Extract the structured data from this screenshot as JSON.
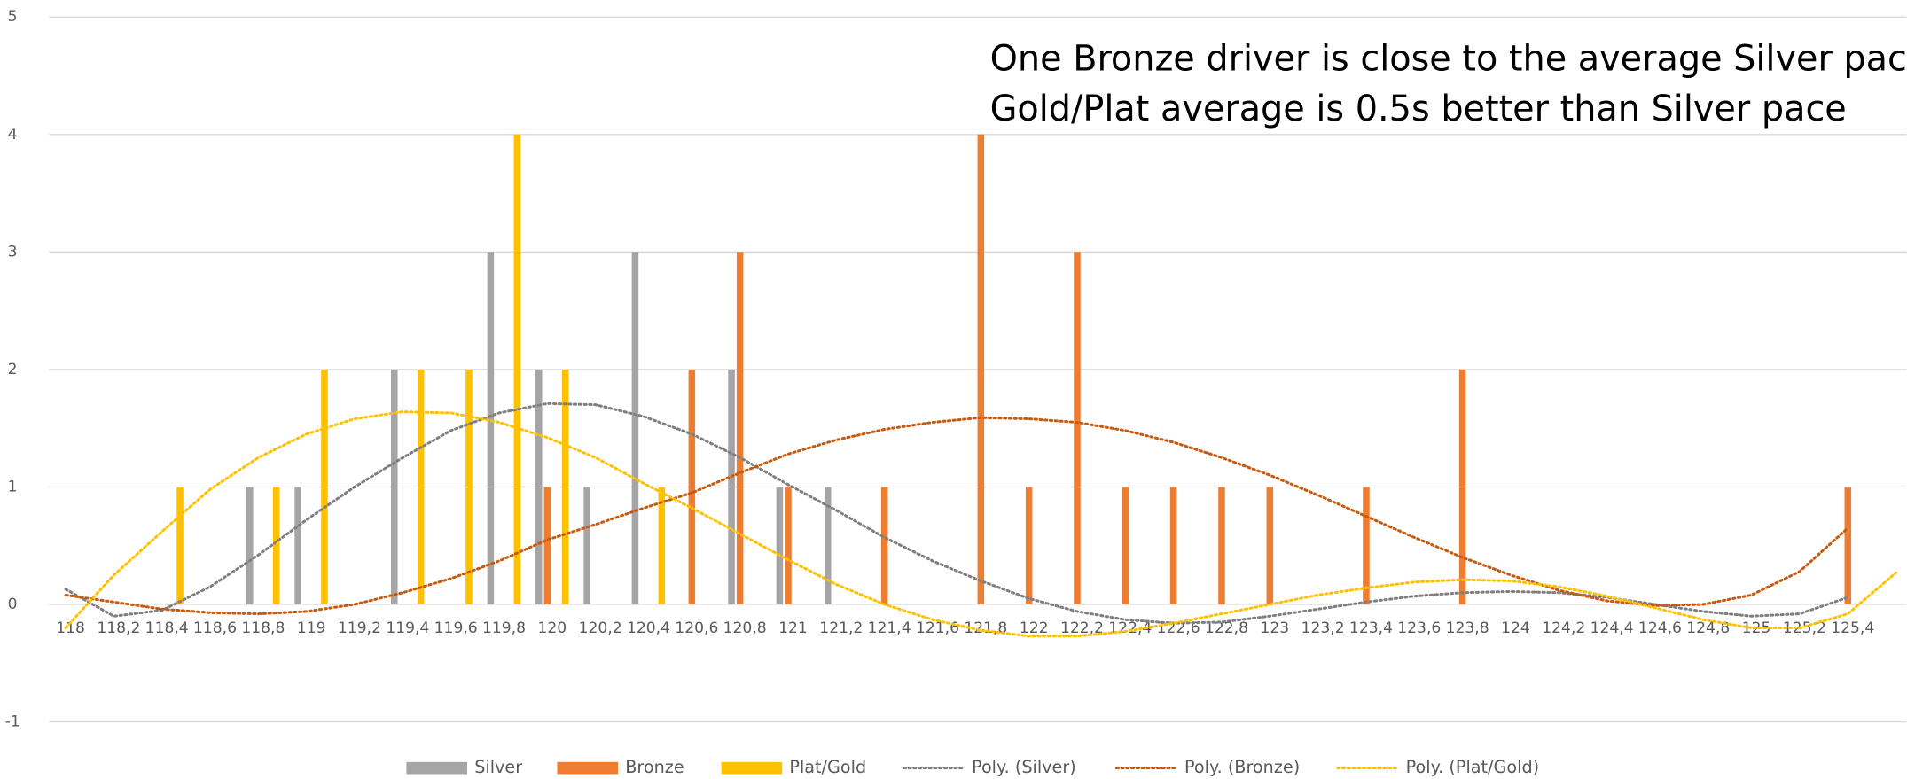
{
  "chart_data": {
    "type": "bar",
    "annotations": [
      "One Bronze driver is close to the average Silver pace",
      "Gold/Plat average is 0.5s better than Silver pace"
    ],
    "categories": [
      "118",
      null,
      "118,2",
      null,
      "118,4",
      null,
      "118,6",
      null,
      "118,8",
      null,
      "119",
      null,
      "119,2",
      null,
      "119,4",
      null,
      "119,6",
      null,
      "119,8",
      null,
      "120",
      null,
      "120,2",
      null,
      "120,4",
      null,
      "120,6",
      null,
      "120,8",
      null,
      "121",
      null,
      "121,2",
      null,
      "121,4",
      null,
      "121,6",
      null,
      "121,8",
      null,
      "122",
      null,
      "122,2",
      null,
      "122,4",
      null,
      "122,6",
      null,
      "122,8",
      null,
      "123",
      null,
      "123,2",
      null,
      "123,4",
      null,
      "123,6",
      null,
      "123,8",
      null,
      "124",
      null,
      "124,2",
      null,
      "124,4",
      null,
      "124,6",
      null,
      "124,8",
      null,
      "125",
      null,
      "125,2",
      null,
      "125,4"
    ],
    "xlim": [
      118,
      125.4
    ],
    "series": [
      {
        "name": "Silver",
        "color": "#a5a5a5",
        "values": [
          null,
          null,
          null,
          null,
          null,
          null,
          null,
          null,
          1,
          null,
          1,
          null,
          null,
          null,
          2,
          null,
          null,
          null,
          3,
          null,
          2,
          null,
          1,
          null,
          3,
          null,
          null,
          null,
          2,
          null,
          1,
          null,
          1,
          null,
          null,
          null,
          null,
          null,
          null,
          null,
          null,
          null,
          null,
          null,
          null,
          null,
          null,
          null,
          null,
          null,
          null,
          null,
          null,
          null,
          null,
          null,
          null,
          null,
          null,
          null,
          null,
          null,
          null,
          null,
          null,
          null,
          null,
          null,
          null,
          null,
          null,
          null,
          null,
          null,
          null
        ]
      },
      {
        "name": "Bronze",
        "color": "#ed7d31",
        "values": [
          null,
          null,
          null,
          null,
          null,
          null,
          null,
          null,
          null,
          null,
          null,
          null,
          null,
          null,
          null,
          null,
          null,
          null,
          null,
          null,
          1,
          null,
          null,
          null,
          null,
          null,
          2,
          null,
          3,
          null,
          1,
          null,
          null,
          null,
          1,
          null,
          null,
          null,
          4,
          null,
          1,
          null,
          3,
          null,
          1,
          null,
          1,
          null,
          1,
          null,
          1,
          null,
          null,
          null,
          1,
          null,
          null,
          null,
          2,
          null,
          null,
          null,
          null,
          null,
          null,
          null,
          null,
          null,
          null,
          null,
          null,
          null,
          null,
          null,
          1
        ]
      },
      {
        "name": "Plat/Gold",
        "color": "#ffc000",
        "values": [
          null,
          null,
          null,
          null,
          null,
          1,
          null,
          null,
          null,
          1,
          null,
          2,
          null,
          null,
          null,
          2,
          null,
          2,
          null,
          4,
          null,
          2,
          null,
          null,
          null,
          1,
          null,
          null,
          null,
          null,
          null,
          null,
          null,
          null,
          null,
          null,
          null,
          null,
          null,
          null,
          null,
          null,
          null,
          null,
          null,
          null,
          null,
          null,
          null,
          null,
          null,
          null,
          null,
          null,
          null,
          null,
          null,
          null,
          null,
          null,
          null,
          null,
          null,
          null,
          null,
          null,
          null,
          null,
          null,
          null,
          null,
          null,
          null,
          null,
          null
        ]
      }
    ],
    "trendlines": [
      {
        "name": "Poly. (Silver)",
        "color": "#7f7f7f",
        "x": [
          118,
          118.2,
          118.4,
          118.6,
          118.8,
          119,
          119.2,
          119.4,
          119.6,
          119.8,
          120,
          120.2,
          120.4,
          120.6,
          120.8,
          121,
          121.2,
          121.4,
          121.6,
          121.8,
          122,
          122.2,
          122.4,
          122.6,
          122.8,
          123,
          123.2,
          123.4,
          123.6,
          123.8,
          124,
          124.2,
          124.4,
          124.6,
          124.8,
          125,
          125.2,
          125.4
        ],
        "values": [
          0.13,
          -0.1,
          -0.05,
          0.15,
          0.42,
          0.72,
          1.0,
          1.25,
          1.48,
          1.63,
          1.71,
          1.7,
          1.6,
          1.45,
          1.25,
          1.02,
          0.8,
          0.57,
          0.37,
          0.2,
          0.05,
          -0.06,
          -0.13,
          -0.16,
          -0.15,
          -0.1,
          -0.04,
          0.02,
          0.07,
          0.1,
          0.11,
          0.1,
          0.06,
          0.0,
          -0.06,
          -0.1,
          -0.08,
          0.06
        ]
      },
      {
        "name": "Poly. (Bronze)",
        "color": "#c55a11",
        "x": [
          118,
          118.2,
          118.4,
          118.6,
          118.8,
          119,
          119.2,
          119.4,
          119.6,
          119.8,
          120,
          120.2,
          120.4,
          120.6,
          120.8,
          121,
          121.2,
          121.4,
          121.6,
          121.8,
          122,
          122.2,
          122.4,
          122.6,
          122.8,
          123,
          123.2,
          123.4,
          123.6,
          123.8,
          124,
          124.2,
          124.4,
          124.6,
          124.8,
          125,
          125.2,
          125.4
        ],
        "values": [
          0.08,
          0.02,
          -0.04,
          -0.07,
          -0.08,
          -0.06,
          0.0,
          0.1,
          0.22,
          0.37,
          0.55,
          0.68,
          0.82,
          0.95,
          1.12,
          1.28,
          1.4,
          1.49,
          1.55,
          1.59,
          1.58,
          1.55,
          1.48,
          1.38,
          1.25,
          1.1,
          0.93,
          0.75,
          0.57,
          0.4,
          0.25,
          0.12,
          0.03,
          -0.01,
          0.0,
          0.08,
          0.28,
          0.65
        ]
      },
      {
        "name": "Poly. (Plat/Gold)",
        "color": "#ffc000",
        "x": [
          118,
          118.2,
          118.4,
          118.6,
          118.8,
          119,
          119.2,
          119.4,
          119.6,
          119.8,
          120,
          120.2,
          120.4,
          120.6,
          120.8,
          121,
          121.2,
          121.4,
          121.6,
          121.8,
          122,
          122.2,
          122.4,
          122.6,
          122.8,
          123,
          123.2,
          123.4,
          123.6,
          123.8,
          124,
          124.2,
          124.4,
          124.6,
          124.8,
          125,
          125.2,
          125.4,
          125.6
        ],
        "values": [
          -0.2,
          0.25,
          0.62,
          0.98,
          1.25,
          1.45,
          1.58,
          1.64,
          1.63,
          1.55,
          1.42,
          1.25,
          1.03,
          0.82,
          0.6,
          0.38,
          0.17,
          0.0,
          -0.13,
          -0.22,
          -0.27,
          -0.27,
          -0.23,
          -0.16,
          -0.08,
          0.0,
          0.08,
          0.14,
          0.19,
          0.21,
          0.2,
          0.15,
          0.07,
          -0.03,
          -0.13,
          -0.2,
          -0.2,
          -0.08,
          0.27
        ]
      }
    ],
    "ylim": [
      -1,
      5
    ],
    "yticks": [
      -1,
      0,
      1,
      2,
      3,
      4,
      5
    ],
    "grid": true,
    "legend": "bottom"
  }
}
